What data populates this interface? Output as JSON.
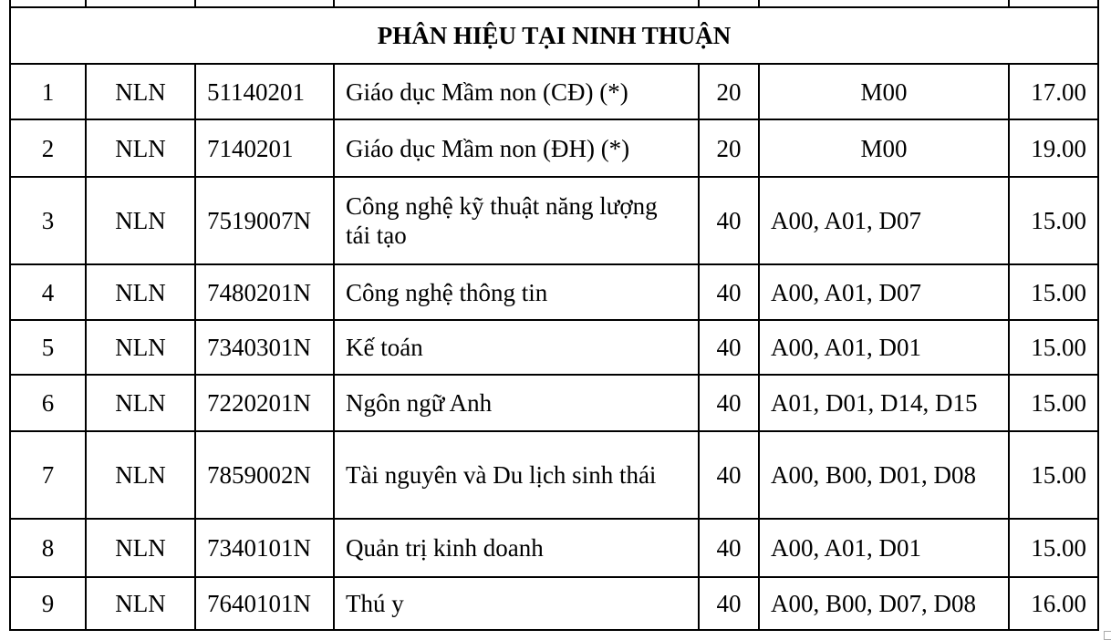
{
  "section_title": "PHÂN HIỆU TẠI NINH THUẬN",
  "rows": [
    {
      "stt": "1",
      "school": "NLN",
      "code": "51140201",
      "major": "Giáo dục Mầm non (CĐ) (*)",
      "quota": "20",
      "combos": "M00",
      "score": "17.00"
    },
    {
      "stt": "2",
      "school": "NLN",
      "code": "7140201",
      "major": "Giáo dục Mầm non (ĐH) (*)",
      "quota": "20",
      "combos": "M00",
      "score": "19.00"
    },
    {
      "stt": "3",
      "school": "NLN",
      "code": "7519007N",
      "major": "Công nghệ kỹ thuật năng lượng tái tạo",
      "quota": "40",
      "combos": "A00, A01, D07",
      "score": "15.00"
    },
    {
      "stt": "4",
      "school": "NLN",
      "code": "7480201N",
      "major": "Công nghệ thông tin",
      "quota": "40",
      "combos": "A00, A01, D07",
      "score": "15.00"
    },
    {
      "stt": "5",
      "school": "NLN",
      "code": "7340301N",
      "major": "Kế toán",
      "quota": "40",
      "combos": "A00, A01, D01",
      "score": "15.00"
    },
    {
      "stt": "6",
      "school": "NLN",
      "code": "7220201N",
      "major": "Ngôn ngữ Anh",
      "quota": "40",
      "combos": "A01, D01, D14, D15",
      "score": "15.00"
    },
    {
      "stt": "7",
      "school": "NLN",
      "code": "7859002N",
      "major": "Tài nguyên và Du lịch sinh thái",
      "quota": "40",
      "combos": "A00, B00, D01, D08",
      "score": "15.00"
    },
    {
      "stt": "8",
      "school": "NLN",
      "code": "7340101N",
      "major": "Quản trị kinh doanh",
      "quota": "40",
      "combos": "A00, A01, D01",
      "score": "15.00"
    },
    {
      "stt": "9",
      "school": "NLN",
      "code": "7640101N",
      "major": "Thú y",
      "quota": "40",
      "combos": "A00, B00, D07, D08",
      "score": "16.00"
    }
  ]
}
